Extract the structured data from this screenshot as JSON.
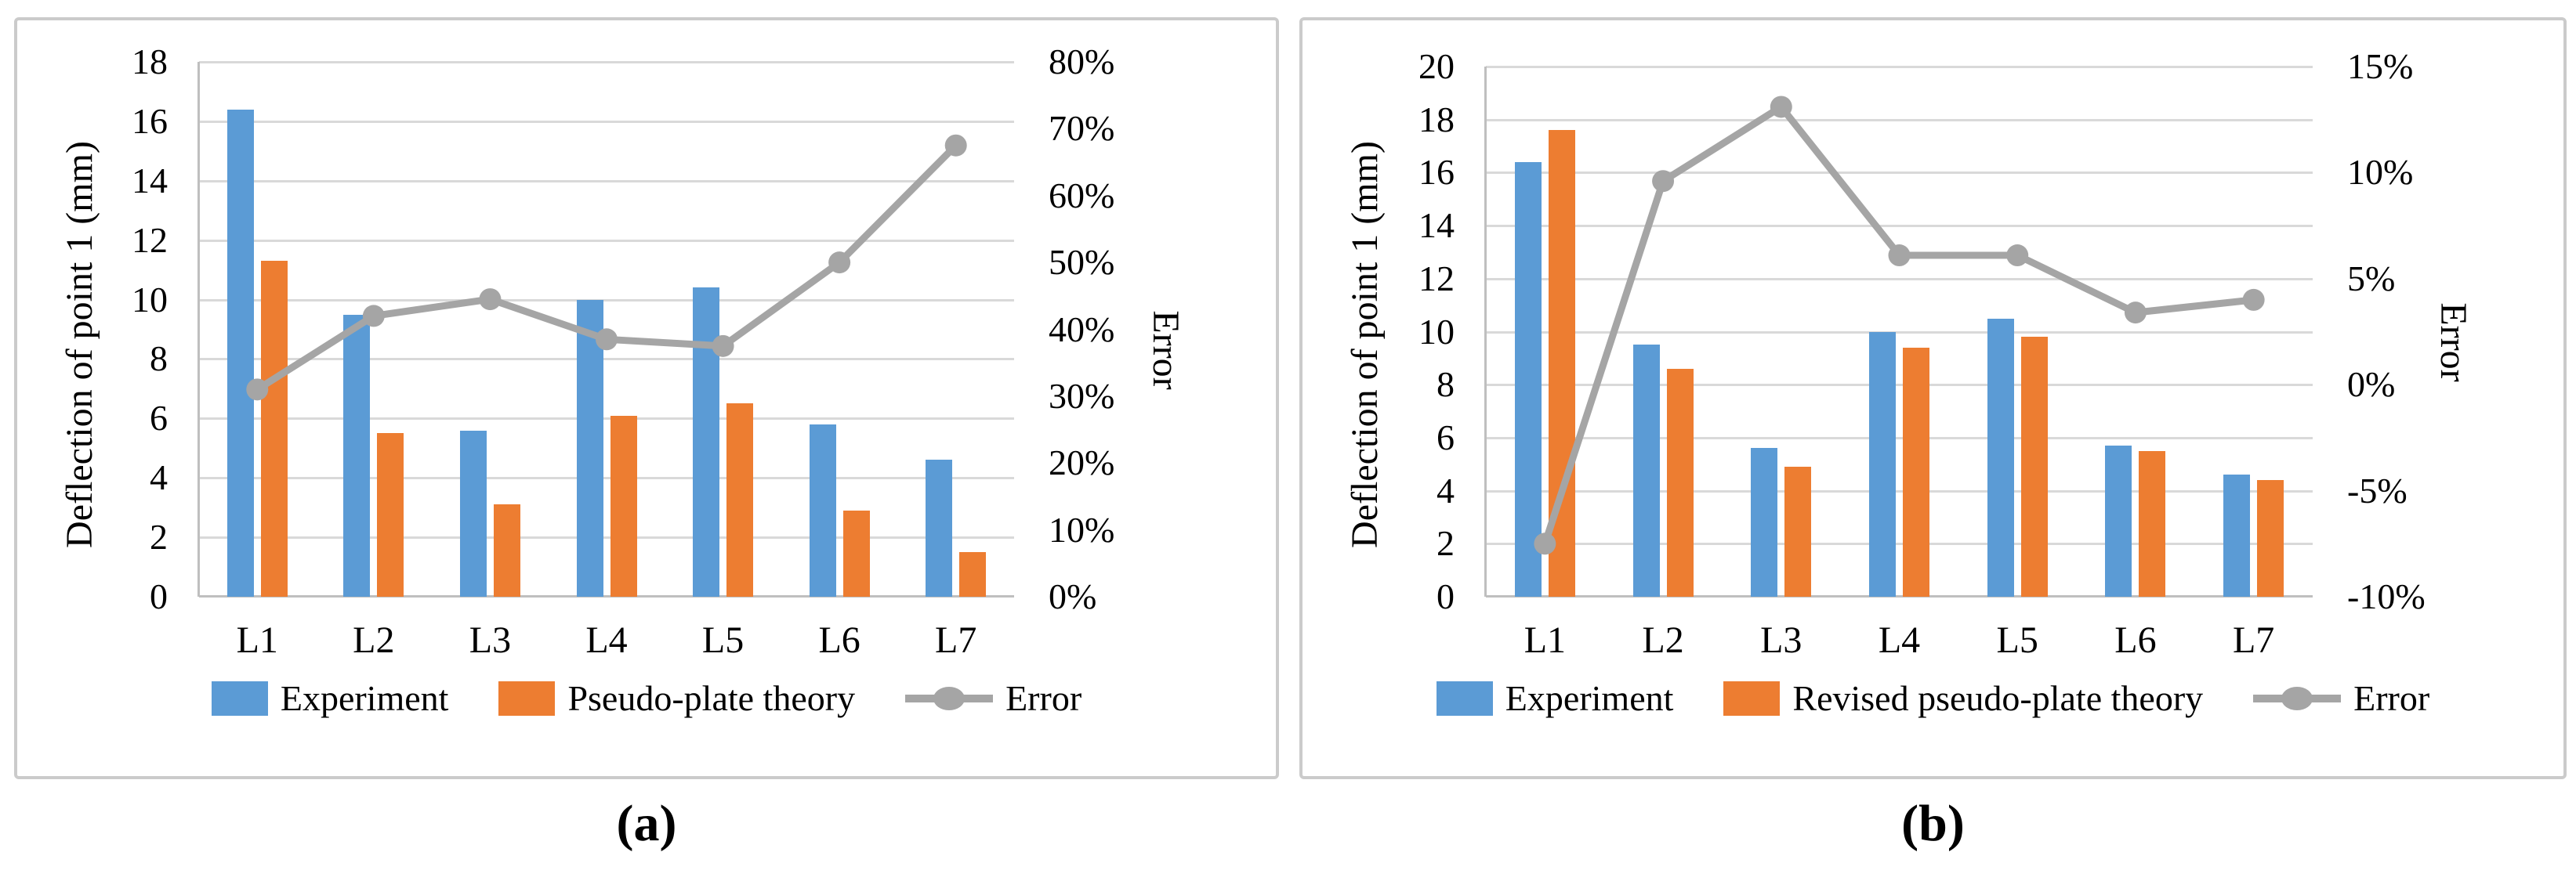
{
  "colors": {
    "experiment_bar": "#5B9BD5",
    "theory_bar": "#ED7D31",
    "error_line": "#A5A5A5",
    "gridline": "#D9D9D9",
    "axis_line": "#BFBFBF",
    "panel_border": "#CBCBCB",
    "text": "#000000"
  },
  "chart_data": [
    {
      "panel": "a",
      "caption": "(a)",
      "type": "bar+line",
      "grid": true,
      "legend_position": "bottom",
      "categories": [
        "L1",
        "L2",
        "L3",
        "L4",
        "L5",
        "L6",
        "L7"
      ],
      "series": [
        {
          "name": "Experiment",
          "kind": "bar",
          "axis": "left",
          "color": "#5B9BD5",
          "values": [
            16.4,
            9.5,
            5.6,
            10.0,
            10.4,
            5.8,
            4.6
          ]
        },
        {
          "name": "Pseudo-plate theory",
          "kind": "bar",
          "axis": "left",
          "color": "#ED7D31",
          "values": [
            11.3,
            5.5,
            3.1,
            6.1,
            6.5,
            2.9,
            1.5
          ]
        },
        {
          "name": "Error",
          "kind": "line",
          "axis": "right",
          "color": "#A5A5A5",
          "unit": "%",
          "values": [
            31,
            42,
            44.5,
            38.5,
            37.5,
            50,
            67.5
          ]
        }
      ],
      "y_left": {
        "title": "Deflection of point 1 (mm)",
        "min": 0,
        "max": 18,
        "step": 2,
        "tick_labels": [
          "0",
          "2",
          "4",
          "6",
          "8",
          "10",
          "12",
          "14",
          "16",
          "18"
        ]
      },
      "y_right": {
        "title": "Error",
        "min": 0,
        "max": 80,
        "step": 10,
        "tick_labels": [
          "0%",
          "10%",
          "20%",
          "30%",
          "40%",
          "50%",
          "60%",
          "70%",
          "80%"
        ]
      },
      "legend": [
        "Experiment",
        "Pseudo-plate theory",
        "Error"
      ]
    },
    {
      "panel": "b",
      "caption": "(b)",
      "type": "bar+line",
      "grid": true,
      "legend_position": "bottom",
      "categories": [
        "L1",
        "L2",
        "L3",
        "L4",
        "L5",
        "L6",
        "L7"
      ],
      "series": [
        {
          "name": "Experiment",
          "kind": "bar",
          "axis": "left",
          "color": "#5B9BD5",
          "values": [
            16.4,
            9.5,
            5.6,
            10.0,
            10.5,
            5.7,
            4.6
          ]
        },
        {
          "name": "Revised pseudo-plate theory",
          "kind": "bar",
          "axis": "left",
          "color": "#ED7D31",
          "values": [
            17.6,
            8.6,
            4.9,
            9.4,
            9.8,
            5.5,
            4.4
          ]
        },
        {
          "name": "Error",
          "kind": "line",
          "axis": "right",
          "color": "#A5A5A5",
          "unit": "%",
          "values": [
            -7.5,
            9.6,
            13.1,
            6.1,
            6.1,
            3.4,
            4.0
          ]
        }
      ],
      "y_left": {
        "title": "Deflection of point 1 (mm)",
        "min": 0,
        "max": 20,
        "step": 2,
        "tick_labels": [
          "0",
          "2",
          "4",
          "6",
          "8",
          "10",
          "12",
          "14",
          "16",
          "18",
          "20"
        ]
      },
      "y_right": {
        "title": "Error",
        "min": -10,
        "max": 15,
        "step": 5,
        "tick_labels": [
          "-10%",
          "-5%",
          "0%",
          "5%",
          "10%",
          "15%"
        ]
      },
      "legend": [
        "Experiment",
        "Revised pseudo-plate theory",
        "Error"
      ]
    }
  ]
}
